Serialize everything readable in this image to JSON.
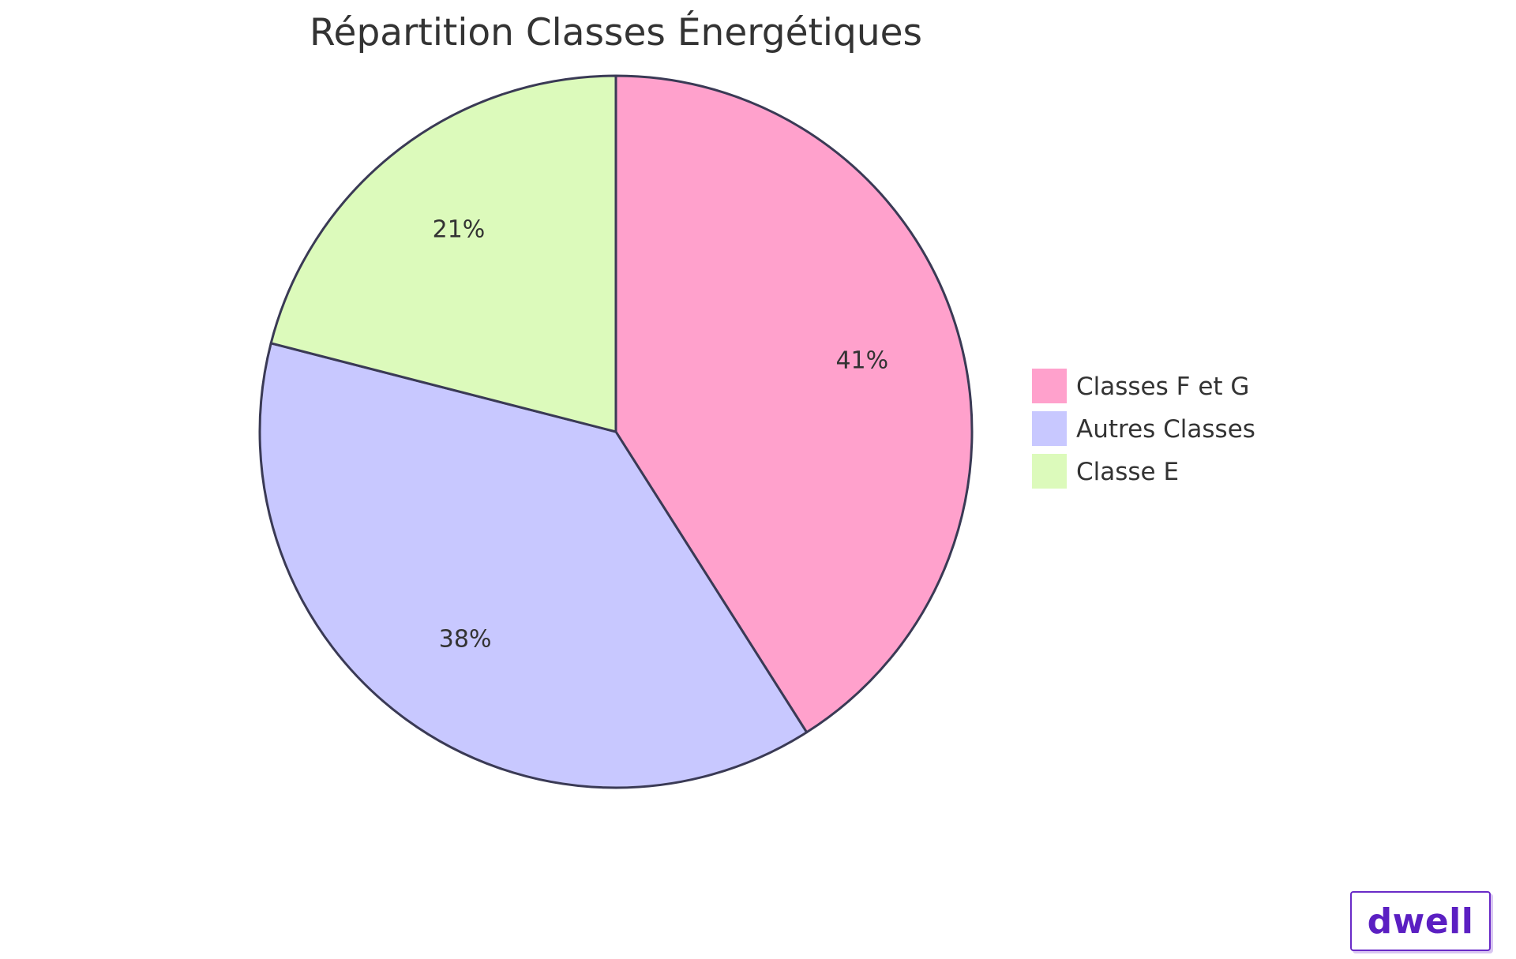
{
  "chart_data": {
    "type": "pie",
    "title": "Répartition Classes Énergétiques",
    "slices": [
      {
        "name": "Classes F et G",
        "value": 41,
        "label": "41%",
        "color": "#ffa1cc"
      },
      {
        "name": "Autres Classes",
        "value": 38,
        "label": "38%",
        "color": "#c8c8ff"
      },
      {
        "name": "Classe E",
        "value": 21,
        "label": "21%",
        "color": "#dcfabb"
      }
    ],
    "legend_position": "right",
    "stroke_color": "#3a3a55"
  },
  "watermark": {
    "text": "dwell"
  }
}
